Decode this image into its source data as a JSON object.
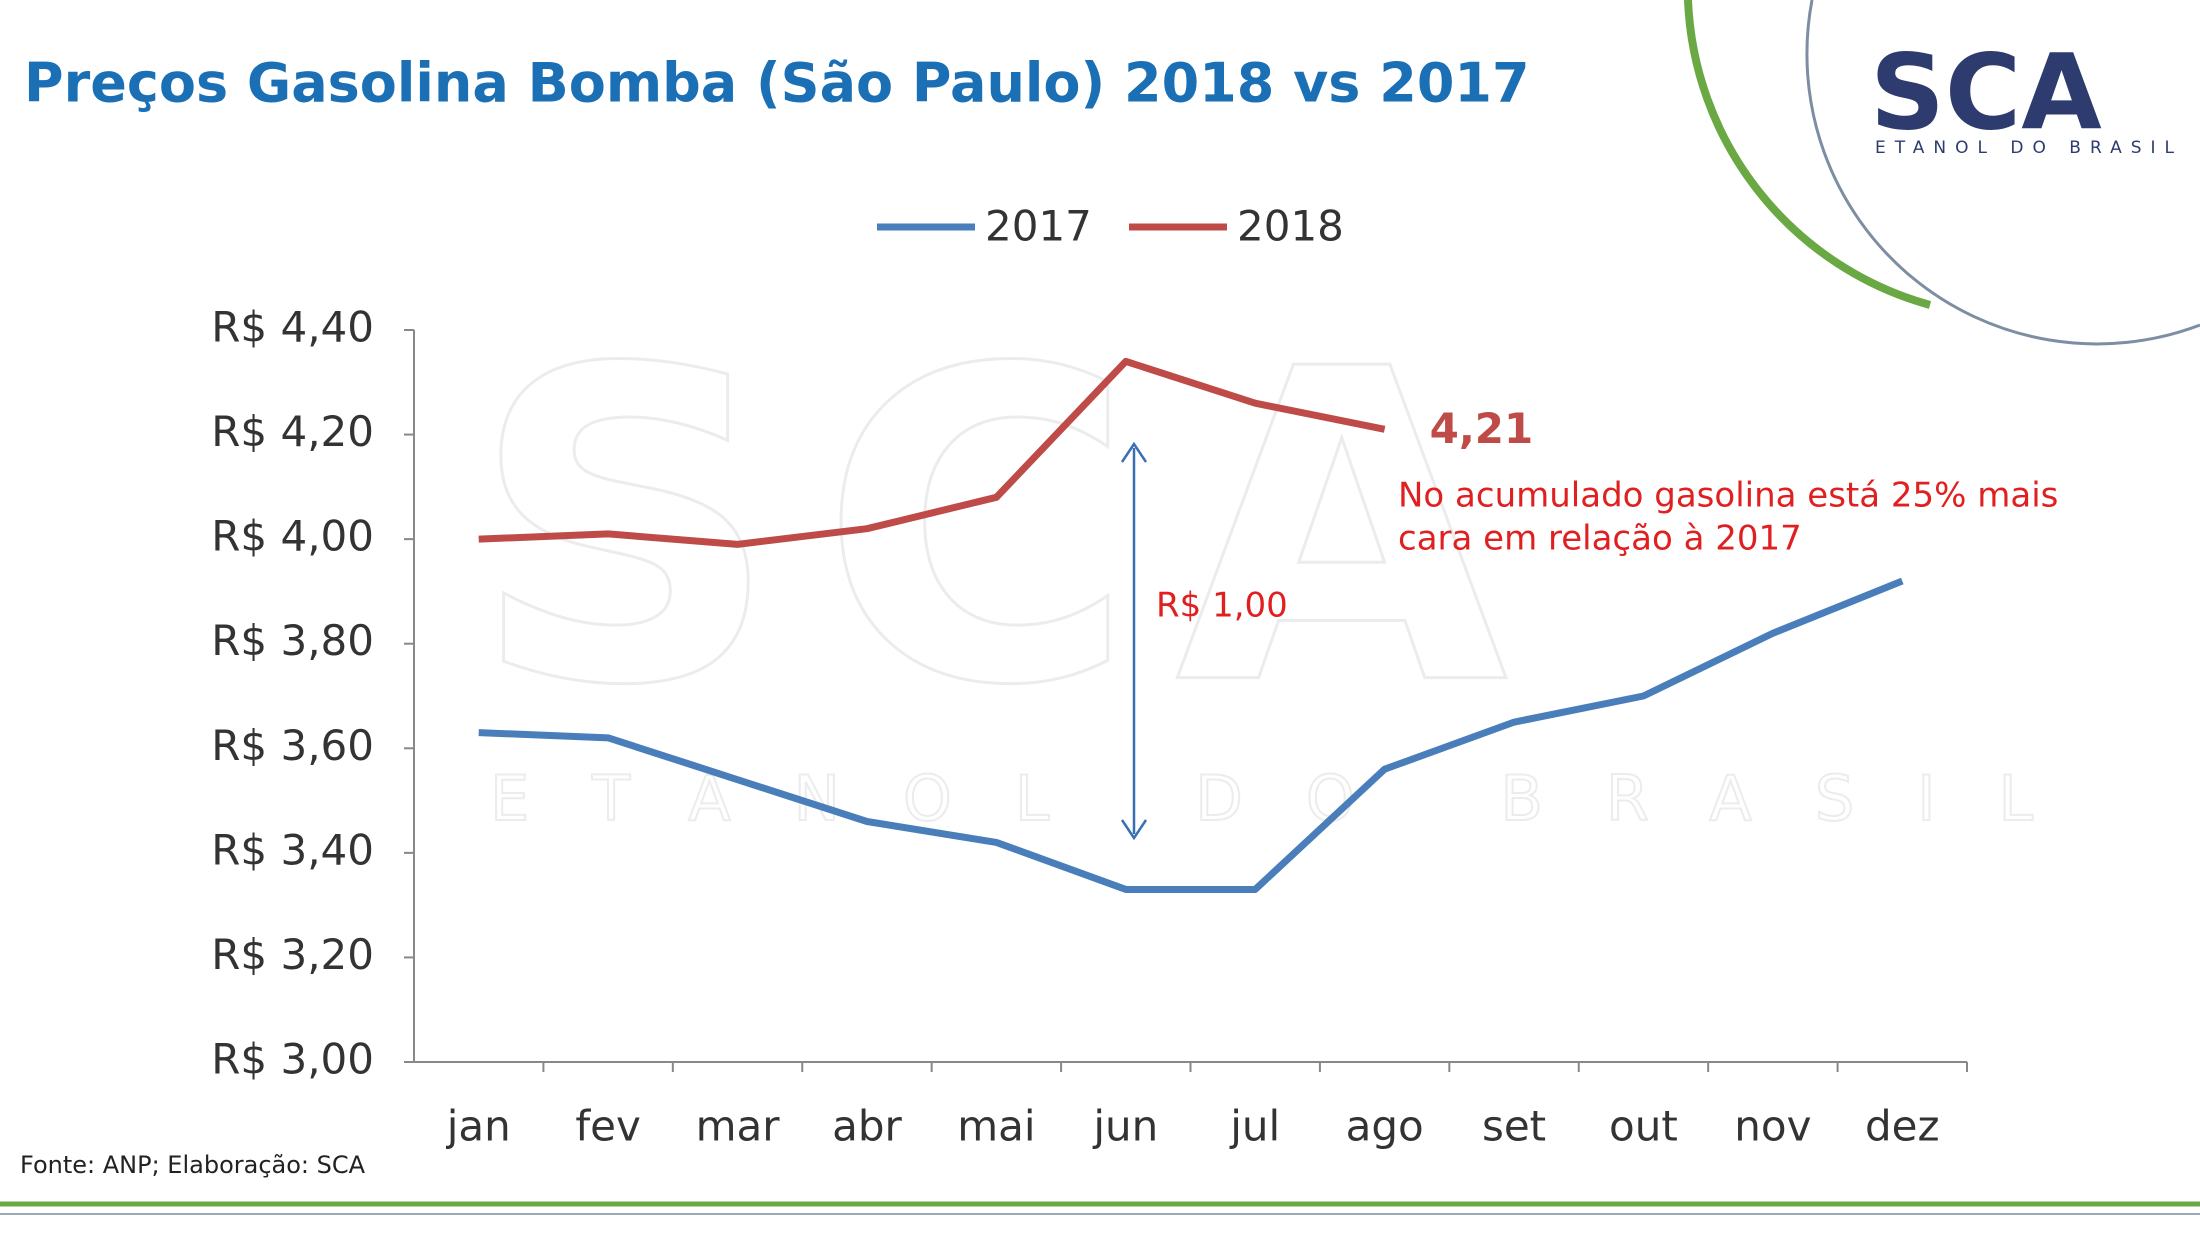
{
  "header": {
    "title": "Preços Gasolina Bomba (São Paulo) 2018 vs 2017",
    "logo": "SCA",
    "logo_tagline": "ETANOL DO BRASIL"
  },
  "chart_data": {
    "type": "line",
    "categories": [
      "jan",
      "fev",
      "mar",
      "abr",
      "mai",
      "jun",
      "jul",
      "ago",
      "set",
      "out",
      "nov",
      "dez"
    ],
    "series": [
      {
        "name": "2017",
        "color": "#4a7ebb",
        "values": [
          3.63,
          3.62,
          3.54,
          3.46,
          3.42,
          3.33,
          3.33,
          3.56,
          3.65,
          3.7,
          3.82,
          3.92
        ]
      },
      {
        "name": "2018",
        "color": "#be4b48",
        "values": [
          4.0,
          4.01,
          3.99,
          4.02,
          4.08,
          4.34,
          4.26,
          4.21,
          null,
          null,
          null,
          null
        ],
        "value_labels": [
          null,
          null,
          null,
          null,
          null,
          null,
          null,
          "4,21",
          null,
          null,
          null,
          null
        ]
      }
    ],
    "ylim": [
      3.0,
      4.4
    ],
    "yticks": [
      {
        "value": 3.0,
        "label": "R$ 3,00"
      },
      {
        "value": 3.2,
        "label": "R$ 3,20"
      },
      {
        "value": 3.4,
        "label": "R$ 3,40"
      },
      {
        "value": 3.6,
        "label": "R$ 3,60"
      },
      {
        "value": 3.8,
        "label": "R$ 3,80"
      },
      {
        "value": 4.0,
        "label": "R$ 4,00"
      },
      {
        "value": 4.2,
        "label": "R$ 4,20"
      },
      {
        "value": 4.4,
        "label": "R$ 4,40"
      }
    ],
    "grid": false,
    "legend": "top",
    "annotations": [
      "R$ 1,00",
      "No acumulado gasolina está 25% mais",
      "cara em relação à 2017"
    ]
  },
  "footer": {
    "source": "Fonte: ANP; Elaboração: SCA"
  }
}
